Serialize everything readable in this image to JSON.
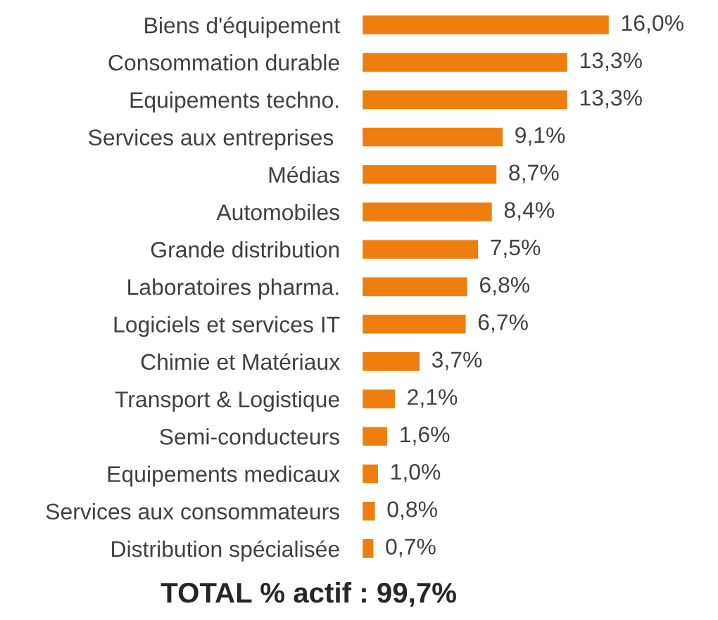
{
  "chart_data": {
    "type": "bar",
    "orientation": "horizontal",
    "categories": [
      "Biens d'équipement",
      "Consommation durable",
      "Equipements techno.",
      "Services aux entreprises ",
      "Médias",
      "Automobiles",
      "Grande distribution",
      "Laboratoires pharma.",
      "Logiciels et services IT",
      "Chimie et Matériaux",
      "Transport & Logistique",
      "Semi-conducteurs",
      "Equipements medicaux",
      "Services aux consommateurs",
      "Distribution spécialisée"
    ],
    "values": [
      16.0,
      13.3,
      13.3,
      9.1,
      8.7,
      8.4,
      7.5,
      6.8,
      6.7,
      3.7,
      2.1,
      1.6,
      1.0,
      0.8,
      0.7
    ],
    "value_labels": [
      "16,0%",
      "13,3%",
      "13,3%",
      "9,1%",
      "8,7%",
      "8,4%",
      "7,5%",
      "6,8%",
      "6,7%",
      "3,7%",
      "2,1%",
      "1,6%",
      "1,0%",
      "0,8%",
      "0,7%"
    ],
    "color": "#ee7f0e",
    "tick_labels": "y",
    "annotations": [
      "TOTAL % actif : 99,7%"
    ]
  }
}
